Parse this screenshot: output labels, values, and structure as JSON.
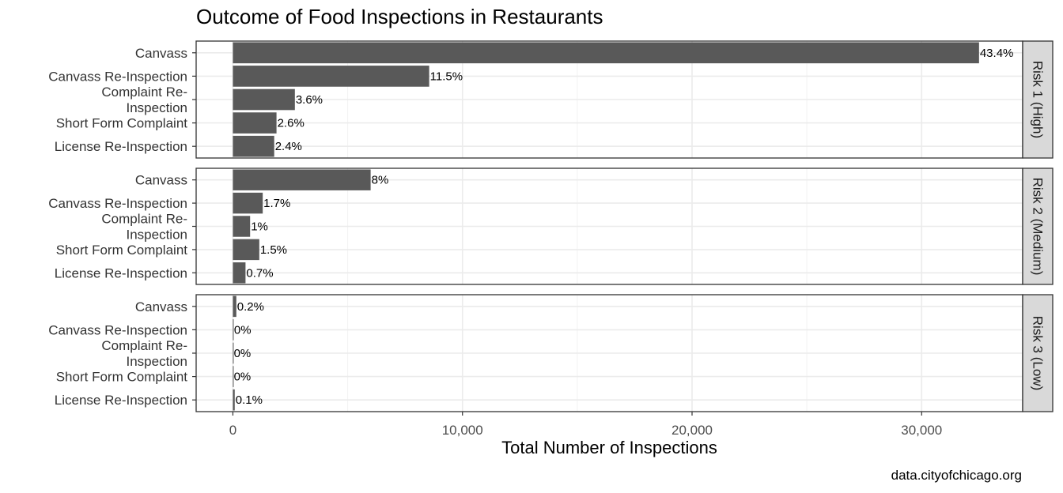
{
  "chart_data": {
    "type": "bar",
    "orientation": "horizontal",
    "title": "Outcome of Food Inspections in Restaurants",
    "xlabel": "Total Number of Inspections",
    "caption": "data.cityofchicago.org",
    "xlim": [
      -1600,
      34400
    ],
    "xticks": [
      0,
      10000,
      20000,
      30000
    ],
    "xtick_labels": [
      "0",
      "10,000",
      "20,000",
      "30,000"
    ],
    "grid": true,
    "categories": [
      "Canvass",
      "Canvass Re-Inspection",
      "Complaint Re-\nInspection",
      "Short Form Complaint",
      "License Re-Inspection"
    ],
    "facets": [
      {
        "name": "Risk 1 (High)",
        "values": [
          32500,
          8550,
          2700,
          1900,
          1800
        ],
        "labels": [
          "43.4%",
          "11.5%",
          "3.6%",
          "2.6%",
          "2.4%"
        ]
      },
      {
        "name": "Risk 2 (Medium)",
        "values": [
          6000,
          1300,
          750,
          1150,
          550
        ],
        "labels": [
          "8%",
          "1.7%",
          "1%",
          "1.5%",
          "0.7%"
        ]
      },
      {
        "name": "Risk 3 (Low)",
        "values": [
          150,
          15,
          5,
          5,
          80
        ],
        "labels": [
          "0.2%",
          "0%",
          "0%",
          "0%",
          "0.1%"
        ]
      }
    ]
  }
}
